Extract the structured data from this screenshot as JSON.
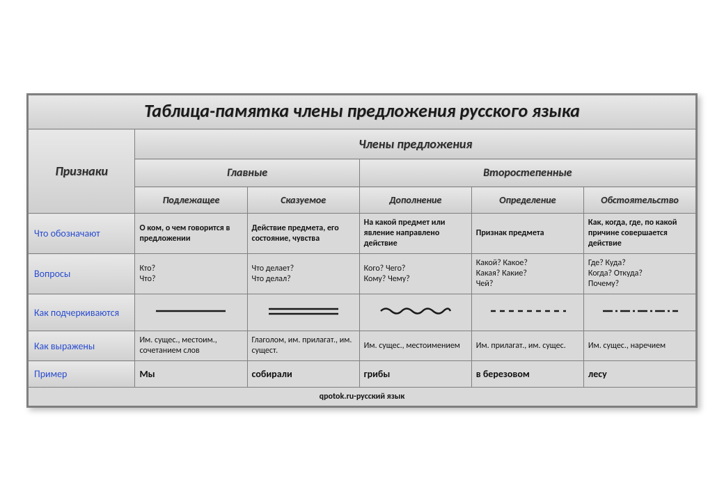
{
  "title": "Таблица-памятка члены предложения русского языка",
  "header": {
    "features": "Признаки",
    "members": "Члены предложения",
    "main": "Главные",
    "secondary": "Второстепенные",
    "cols": [
      "Подлежащее",
      "Сказуемое",
      "Дополнение",
      "Определение",
      "Обстоятельство"
    ]
  },
  "rows": {
    "meaning": {
      "label": "Что обозначают",
      "cells": [
        "О ком, о чем говорится в предложении",
        "Действие предмета, его состояние, чувства",
        "На какой предмет или явление направлено действие",
        "Признак предмета",
        "Как, когда, где, по какой причине совершается действие"
      ]
    },
    "questions": {
      "label": "Вопросы",
      "cells": [
        "Кто?\nЧто?",
        "Что делает?\nЧто делал?",
        "Кого? Чего?\nКому? Чему?",
        "Какой? Какое?\nКакая? Какие?\nЧей?",
        "Где? Куда?\nКогда? Откуда?\nПочему?"
      ]
    },
    "underline": {
      "label": "Как подчеркиваются",
      "svg": {
        "width": 130,
        "height": 30,
        "stroke": "#1a1a1a",
        "stroke_width": 2.5
      }
    },
    "expressed": {
      "label": "Как выражены",
      "cells": [
        "Им. сущес., местоим., сочетанием слов",
        "Глаголом, им. прилагат., им. сущест.",
        "Им. сущес., местоимением",
        "Им. прилагат., им. сущес.",
        "Им. сущес., наречием"
      ]
    },
    "example": {
      "label": "Пример",
      "cells": [
        "Мы",
        "собирали",
        "грибы",
        "в березовом",
        "лесу"
      ]
    }
  },
  "footer": "qpotok.ru-русский язык",
  "layout": {
    "col_widths_pct": [
      16,
      16.8,
      16.8,
      16.8,
      16.8,
      16.8
    ]
  },
  "colors": {
    "border": "#7f7f7f",
    "bg_cell": "#d9d9d9",
    "rowlabel_text": "#2a4dd0",
    "title_text": "#1a1a1a"
  },
  "fonts": {
    "title": 26,
    "group": 18,
    "sub": 16,
    "leaf": 14,
    "rowlabel": 14,
    "cell": 12,
    "footer": 12
  }
}
